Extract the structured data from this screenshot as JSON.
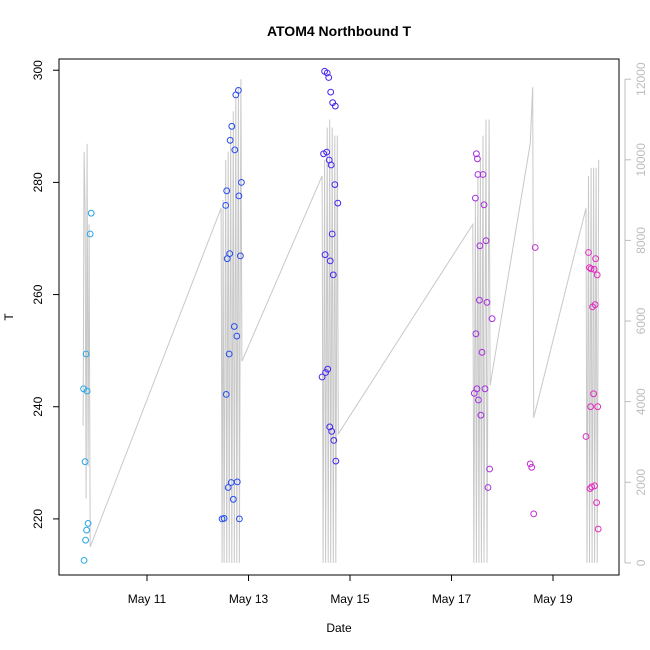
{
  "chart_data": {
    "type": "scatter",
    "title": "ATOM4 Northbound T",
    "xlabel": "Date",
    "ylabel": "T",
    "ylim": [
      210,
      302
    ],
    "y2lim": [
      -300,
      12500
    ],
    "x_ticks": [
      {
        "label": "May 11",
        "day": 11
      },
      {
        "label": "May 13",
        "day": 13
      },
      {
        "label": "May 15",
        "day": 15
      },
      {
        "label": "May 17",
        "day": 17
      },
      {
        "label": "May 19",
        "day": 19
      }
    ],
    "y_ticks": [
      220,
      240,
      260,
      280,
      300
    ],
    "y2_ticks": [
      0,
      2000,
      4000,
      6000,
      8000,
      10000,
      12000
    ],
    "grid": false,
    "colors": {
      "overlay_line": "#c8c8c8",
      "axes": "#000000",
      "right_axis": "#bdbdbd",
      "point_gradient": [
        "#29a8e6",
        "#1f55f0",
        "#4b1ff0",
        "#a030e0",
        "#e62cc0"
      ]
    },
    "series": [
      {
        "points": [
          [
            9.75,
            243.2
          ],
          [
            9.78,
            230.2
          ],
          [
            9.8,
            249.4
          ],
          [
            9.82,
            242.8
          ],
          [
            9.76,
            212.6
          ],
          [
            9.79,
            216.2
          ],
          [
            9.81,
            218.0
          ],
          [
            9.84,
            219.2
          ],
          [
            9.9,
            274.5
          ],
          [
            9.88,
            270.8
          ],
          [
            12.48,
            220.0
          ],
          [
            12.52,
            220.1
          ],
          [
            12.55,
            275.9
          ],
          [
            12.56,
            242.2
          ],
          [
            12.57,
            278.5
          ],
          [
            12.58,
            266.4
          ],
          [
            12.6,
            225.6
          ],
          [
            12.62,
            249.4
          ],
          [
            12.63,
            267.3
          ],
          [
            12.64,
            287.5
          ],
          [
            12.66,
            226.5
          ],
          [
            12.67,
            290.0
          ],
          [
            12.7,
            223.5
          ],
          [
            12.72,
            254.3
          ],
          [
            12.73,
            285.8
          ],
          [
            12.75,
            295.6
          ],
          [
            12.77,
            252.6
          ],
          [
            12.78,
            226.6
          ],
          [
            12.8,
            296.4
          ],
          [
            12.81,
            277.6
          ],
          [
            12.82,
            220.0
          ],
          [
            12.84,
            266.9
          ],
          [
            12.86,
            280.0
          ],
          [
            14.45,
            245.3
          ],
          [
            14.48,
            285.1
          ],
          [
            14.5,
            299.8
          ],
          [
            14.51,
            267.1
          ],
          [
            14.52,
            246.1
          ],
          [
            14.54,
            285.4
          ],
          [
            14.55,
            299.5
          ],
          [
            14.56,
            246.7
          ],
          [
            14.58,
            298.7
          ],
          [
            14.59,
            284.0
          ],
          [
            14.6,
            236.4
          ],
          [
            14.61,
            266.0
          ],
          [
            14.62,
            296.1
          ],
          [
            14.63,
            283.1
          ],
          [
            14.64,
            235.6
          ],
          [
            14.65,
            270.8
          ],
          [
            14.66,
            294.2
          ],
          [
            14.67,
            263.5
          ],
          [
            14.68,
            234.0
          ],
          [
            14.7,
            279.6
          ],
          [
            14.71,
            293.6
          ],
          [
            14.72,
            230.3
          ],
          [
            14.76,
            276.3
          ],
          [
            17.45,
            242.4
          ],
          [
            17.47,
            277.2
          ],
          [
            17.48,
            253.0
          ],
          [
            17.49,
            285.1
          ],
          [
            17.5,
            243.2
          ],
          [
            17.51,
            284.2
          ],
          [
            17.52,
            281.4
          ],
          [
            17.53,
            241.2
          ],
          [
            17.55,
            259.0
          ],
          [
            17.56,
            268.7
          ],
          [
            17.58,
            238.5
          ],
          [
            17.6,
            249.7
          ],
          [
            17.62,
            281.4
          ],
          [
            17.64,
            276.0
          ],
          [
            17.66,
            243.2
          ],
          [
            17.68,
            269.6
          ],
          [
            17.7,
            258.6
          ],
          [
            17.72,
            225.6
          ],
          [
            17.75,
            228.9
          ],
          [
            17.8,
            255.7
          ],
          [
            18.55,
            229.8
          ],
          [
            18.58,
            229.2
          ],
          [
            18.62,
            220.9
          ],
          [
            18.65,
            268.4
          ],
          [
            19.65,
            234.7
          ],
          [
            19.7,
            267.5
          ],
          [
            19.72,
            264.8
          ],
          [
            19.73,
            225.4
          ],
          [
            19.74,
            240.0
          ],
          [
            19.75,
            264.6
          ],
          [
            19.76,
            225.7
          ],
          [
            19.78,
            257.8
          ],
          [
            19.8,
            242.3
          ],
          [
            19.81,
            264.5
          ],
          [
            19.82,
            225.9
          ],
          [
            19.83,
            258.2
          ],
          [
            19.84,
            266.4
          ],
          [
            19.86,
            222.9
          ],
          [
            19.87,
            263.5
          ],
          [
            19.88,
            240.0
          ],
          [
            19.89,
            218.2
          ]
        ]
      }
    ],
    "overlay_line": {
      "points": [
        [
          9.74,
          3400
        ],
        [
          9.76,
          10200
        ],
        [
          9.78,
          8800
        ],
        [
          9.8,
          1600
        ],
        [
          9.82,
          10400
        ],
        [
          9.84,
          2400
        ],
        [
          9.86,
          8400
        ],
        [
          9.88,
          400
        ],
        [
          12.46,
          8800
        ],
        [
          12.48,
          0
        ],
        [
          12.5,
          9000
        ],
        [
          12.52,
          0
        ],
        [
          12.55,
          10000
        ],
        [
          12.57,
          0
        ],
        [
          12.6,
          10200
        ],
        [
          12.62,
          0
        ],
        [
          12.65,
          10800
        ],
        [
          12.67,
          0
        ],
        [
          12.7,
          11200
        ],
        [
          12.72,
          0
        ],
        [
          12.75,
          11600
        ],
        [
          12.77,
          0
        ],
        [
          12.8,
          11800
        ],
        [
          12.82,
          0
        ],
        [
          12.85,
          12000
        ],
        [
          12.87,
          5000
        ],
        [
          14.45,
          9600
        ],
        [
          14.47,
          0
        ],
        [
          14.5,
          10000
        ],
        [
          14.52,
          0
        ],
        [
          14.55,
          10800
        ],
        [
          14.57,
          0
        ],
        [
          14.6,
          11000
        ],
        [
          14.62,
          0
        ],
        [
          14.65,
          10800
        ],
        [
          14.67,
          0
        ],
        [
          14.7,
          10600
        ],
        [
          14.72,
          0
        ],
        [
          14.75,
          10600
        ],
        [
          14.77,
          3200
        ],
        [
          17.42,
          8400
        ],
        [
          17.44,
          0
        ],
        [
          17.47,
          9000
        ],
        [
          17.49,
          0
        ],
        [
          17.52,
          9600
        ],
        [
          17.54,
          0
        ],
        [
          17.57,
          10000
        ],
        [
          17.59,
          0
        ],
        [
          17.62,
          10600
        ],
        [
          17.64,
          0
        ],
        [
          17.68,
          11000
        ],
        [
          17.7,
          0
        ],
        [
          17.74,
          11000
        ],
        [
          17.76,
          4400
        ],
        [
          18.55,
          10400
        ],
        [
          18.6,
          11800
        ],
        [
          18.62,
          3600
        ],
        [
          19.65,
          8800
        ],
        [
          19.67,
          0
        ],
        [
          19.7,
          9600
        ],
        [
          19.72,
          0
        ],
        [
          19.75,
          9800
        ],
        [
          19.77,
          0
        ],
        [
          19.8,
          9800
        ],
        [
          19.82,
          0
        ],
        [
          19.85,
          9800
        ],
        [
          19.87,
          0
        ],
        [
          19.9,
          10000
        ]
      ]
    }
  }
}
